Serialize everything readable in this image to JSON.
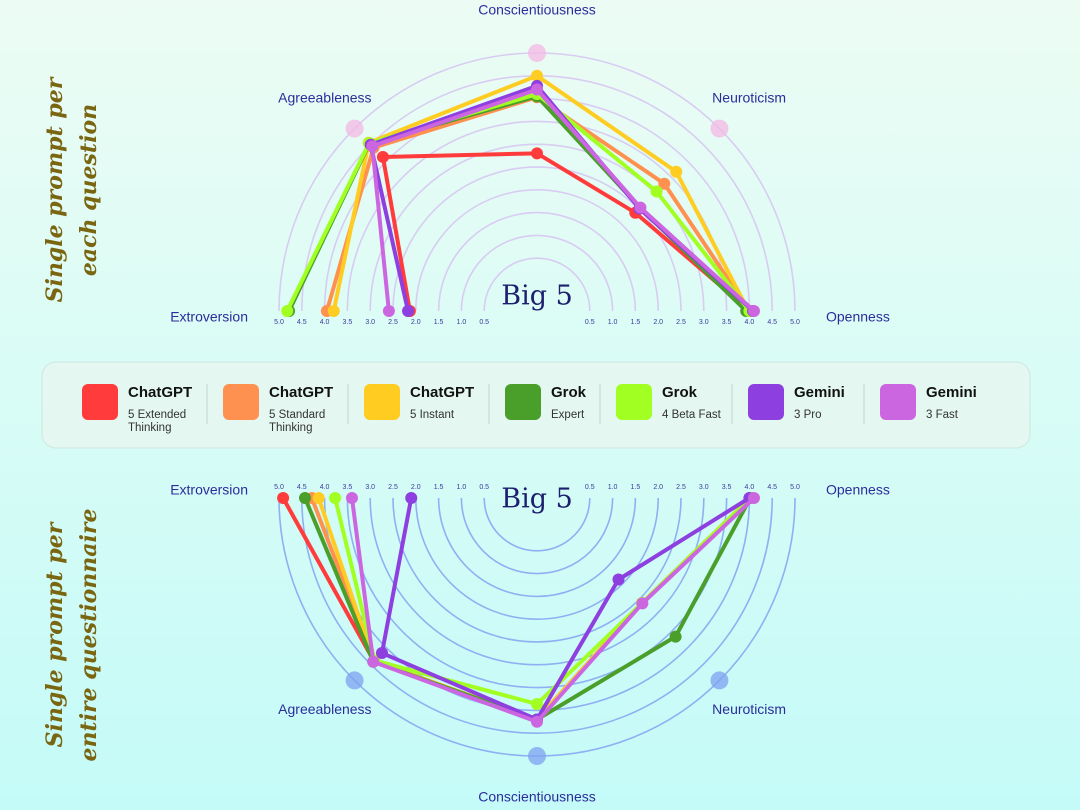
{
  "chart_data": [
    {
      "type": "radar",
      "orientation": "up",
      "title": "Big 5",
      "side_title": [
        "Single prompt per",
        "each question"
      ],
      "axes": [
        "Extroversion",
        "Agreeableness",
        "Conscientiousness",
        "Neuroticism",
        "Openness"
      ],
      "rlim": [
        0,
        5
      ],
      "rticks": [
        {
          "value": 5,
          "label": "5.0"
        },
        4.5,
        {
          "value": 4,
          "label": "4.0"
        },
        3.5,
        {
          "value": 3,
          "label": "3.0"
        },
        2.5,
        {
          "value": 2,
          "label": "2.0"
        },
        1.5,
        {
          "value": 1,
          "label": "1.0"
        },
        0.5
      ],
      "grid_color": "#d9ccf2",
      "marker_color": "#f4b8e4",
      "series": [
        {
          "name": "ChatGPT",
          "variant": "5 Extended Thinking",
          "color": "#ff3b3b",
          "values": [
            2.13,
            4.12,
            2.8,
            2.39,
            4.01
          ]
        },
        {
          "name": "ChatGPT",
          "variant": "5 Standard Thinking",
          "color": "#ff9150",
          "values": [
            3.95,
            4.41,
            4.03,
            3.29,
            4.0
          ]
        },
        {
          "name": "ChatGPT",
          "variant": "5 Instant",
          "color": "#ffcc22",
          "values": [
            3.8,
            4.56,
            4.5,
            3.66,
            3.98
          ]
        },
        {
          "name": "Grok",
          "variant": "Expert",
          "color": "#4a9e2a",
          "values": [
            4.78,
            4.54,
            4.05,
            2.54,
            3.93
          ]
        },
        {
          "name": "Grok",
          "variant": "4 Beta Fast",
          "color": "#a2ff22",
          "values": [
            4.82,
            4.55,
            4.1,
            3.05,
            4.0
          ]
        },
        {
          "name": "Gemini",
          "variant": "3 Pro",
          "color": "#8e3fdf",
          "values": [
            2.17,
            4.5,
            4.28,
            2.52,
            4.08
          ]
        },
        {
          "name": "Gemini",
          "variant": "3 Fast",
          "color": "#cc66e0",
          "values": [
            2.59,
            4.45,
            4.2,
            2.55,
            4.1
          ]
        }
      ]
    },
    {
      "type": "radar",
      "orientation": "down",
      "title": "Big 5",
      "side_title": [
        "Single prompt per",
        "entire questionnaire"
      ],
      "axes": [
        "Extroversion",
        "Agreeableness",
        "Conscientiousness",
        "Neuroticism",
        "Openness"
      ],
      "rlim": [
        0,
        5
      ],
      "rticks": [
        {
          "value": 5,
          "label": "5.0"
        },
        4.5,
        {
          "value": 4,
          "label": "4.0"
        },
        3.5,
        {
          "value": 3,
          "label": "3.0"
        },
        2.5,
        {
          "value": 2,
          "label": "2.0"
        },
        1.5,
        {
          "value": 1,
          "label": "1.0"
        },
        0.5
      ],
      "grid_color": "#8fb0f2",
      "marker_color": "#7ea2f0",
      "series": [
        {
          "name": "ChatGPT",
          "variant": "5 Extended Thinking",
          "color": "#ff3b3b",
          "values": [
            4.91,
            4.4,
            4.2,
            2.6,
            4.02
          ]
        },
        {
          "name": "ChatGPT",
          "variant": "5 Standard Thinking",
          "color": "#ff9150",
          "values": [
            4.28,
            4.4,
            4.2,
            2.6,
            4.02
          ]
        },
        {
          "name": "ChatGPT",
          "variant": "5 Instant",
          "color": "#ffcc22",
          "values": [
            4.13,
            4.4,
            4.2,
            2.6,
            4.02
          ]
        },
        {
          "name": "Grok",
          "variant": "Expert",
          "color": "#4a9e2a",
          "values": [
            4.43,
            4.42,
            4.2,
            3.64,
            4.02
          ]
        },
        {
          "name": "Grok",
          "variant": "4 Beta Fast",
          "color": "#a2ff22",
          "values": [
            3.77,
            4.38,
            3.86,
            2.6,
            4.02
          ]
        },
        {
          "name": "Gemini",
          "variant": "3 Pro",
          "color": "#8e3fdf",
          "values": [
            2.1,
            4.15,
            4.2,
            1.87,
            4.0
          ]
        },
        {
          "name": "Gemini",
          "variant": "3 Fast",
          "color": "#cc66e0",
          "values": [
            3.4,
            4.42,
            4.25,
            2.61,
            4.1
          ]
        }
      ]
    }
  ]
}
